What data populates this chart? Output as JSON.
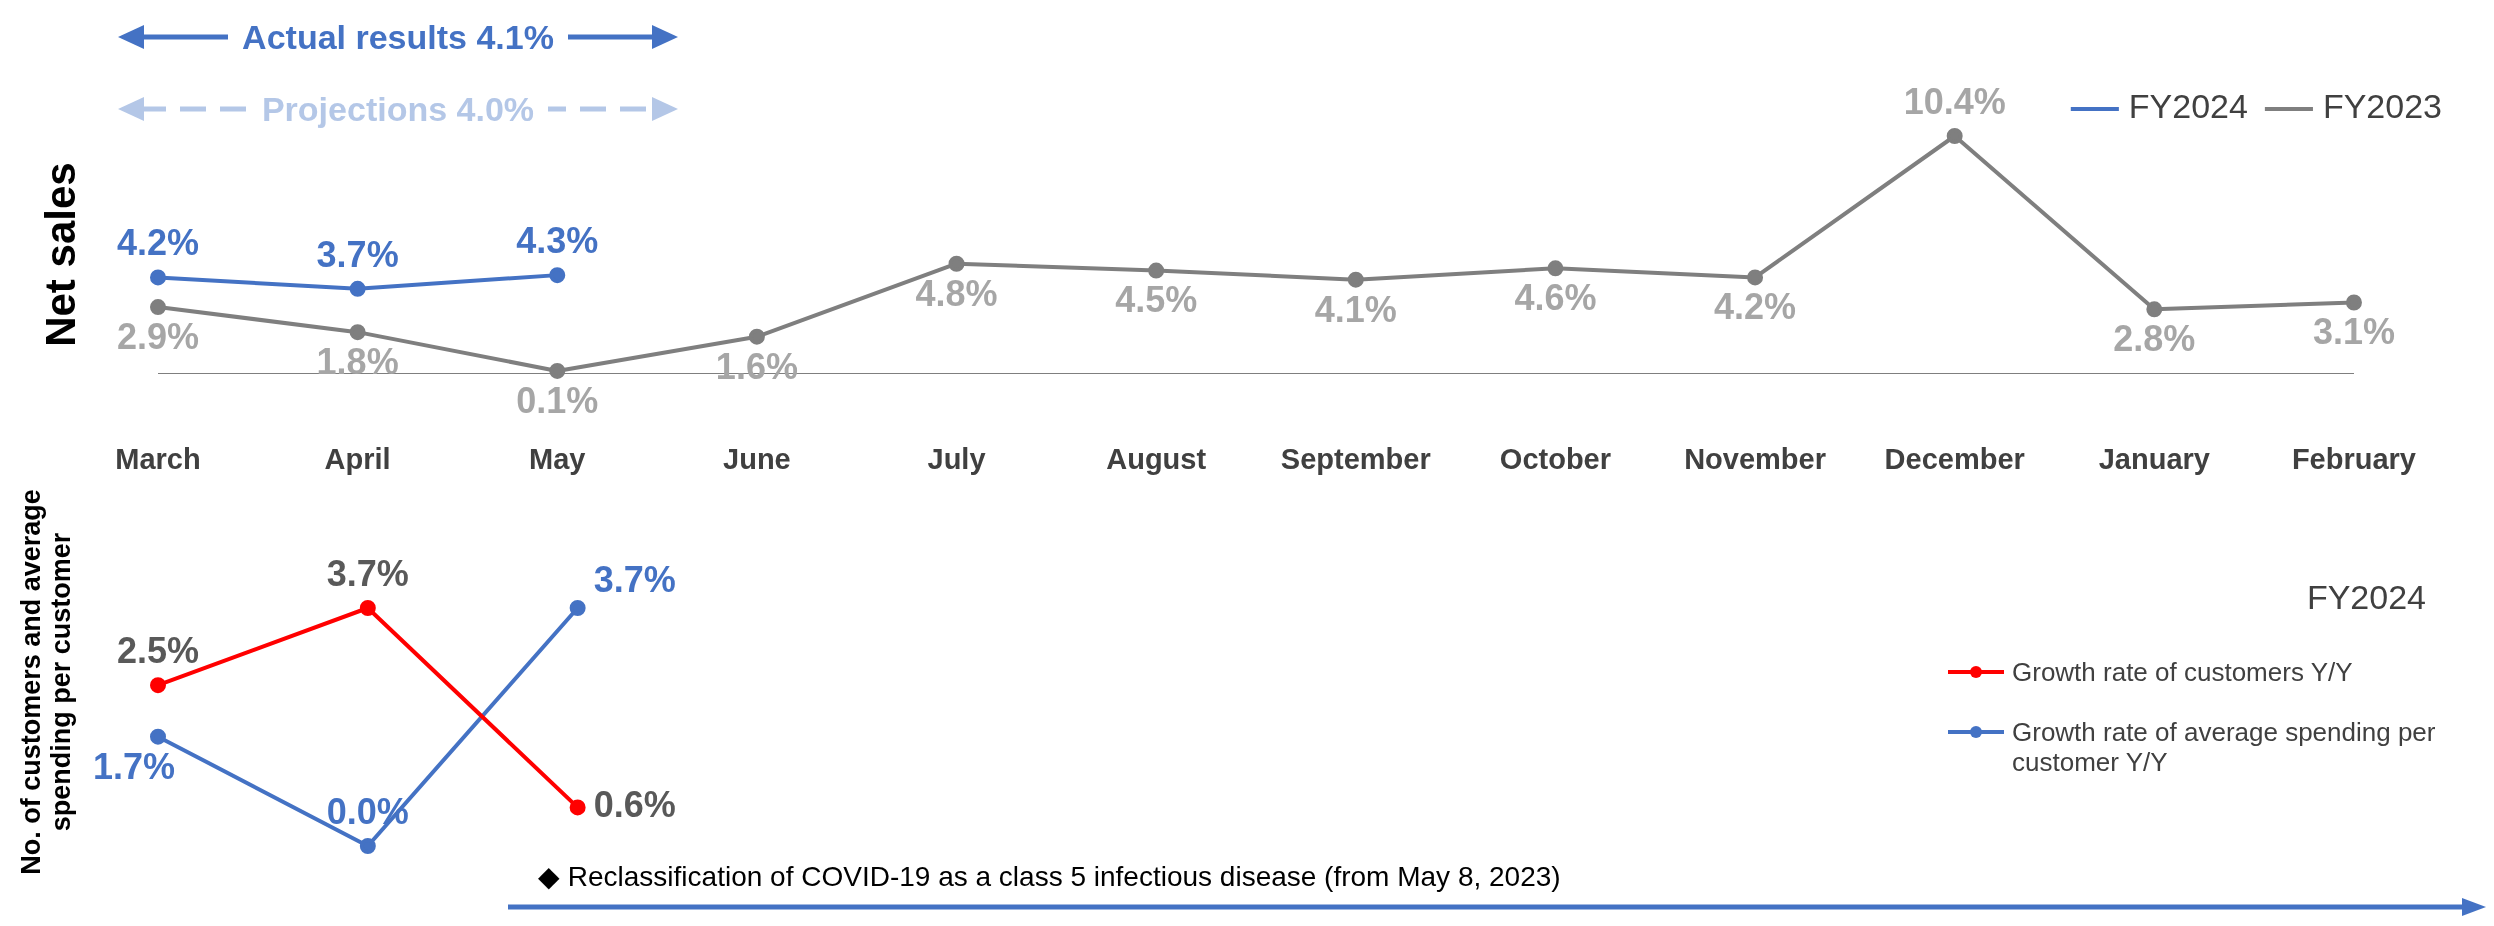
{
  "chart_data": [
    {
      "type": "line",
      "ylabel": "Net sales",
      "categories": [
        "March",
        "April",
        "May",
        "June",
        "July",
        "August",
        "September",
        "October",
        "November",
        "December",
        "January",
        "February"
      ],
      "series": [
        {
          "name": "FY2024",
          "color": "#4472c4",
          "values": [
            4.2,
            3.7,
            4.3,
            null,
            null,
            null,
            null,
            null,
            null,
            null,
            null,
            null
          ],
          "value_labels": [
            "4.2%",
            "3.7%",
            "4.3%",
            null,
            null,
            null,
            null,
            null,
            null,
            null,
            null,
            null
          ]
        },
        {
          "name": "FY2023",
          "color": "#7f7f7f",
          "values": [
            2.9,
            1.8,
            0.1,
            1.6,
            4.8,
            4.5,
            4.1,
            4.6,
            4.2,
            10.4,
            2.8,
            3.1
          ],
          "value_labels": [
            "2.9%",
            "1.8%",
            "0.1%",
            "1.6%",
            "4.8%",
            "4.5%",
            "4.1%",
            "4.6%",
            "4.2%",
            "10.4%",
            "2.8%",
            "3.1%"
          ]
        }
      ],
      "legend": "top right",
      "marker": "circle",
      "grid": false,
      "annotations": [
        "Actual results 4.1%",
        "Projections 4.0%"
      ]
    },
    {
      "type": "line",
      "ylabel": "No. of customers and average spending per customer",
      "legend_title": "FY2024",
      "categories": [
        null,
        null,
        null,
        null,
        null,
        null,
        null,
        null,
        null,
        null,
        null,
        null
      ],
      "series": [
        {
          "name": "Growth rate of customers Y/Y",
          "color": "#ff0000",
          "values": [
            2.5,
            3.7,
            0.6,
            null,
            null,
            null,
            null,
            null,
            null,
            null,
            null,
            null
          ],
          "value_labels": [
            "2.5%",
            "3.7%",
            "0.6%",
            null,
            null,
            null,
            null,
            null,
            null,
            null,
            null,
            null
          ]
        },
        {
          "name": "Growth rate of average spending per customer Y/Y",
          "color": "#4472c4",
          "values": [
            1.7,
            0.0,
            3.7,
            null,
            null,
            null,
            null,
            null,
            null,
            null,
            null,
            null
          ],
          "value_labels": [
            "1.7%",
            "0.0%",
            "3.7%",
            null,
            null,
            null,
            null,
            null,
            null,
            null,
            null,
            null
          ]
        }
      ],
      "legend": "right",
      "marker": "circle",
      "grid": false,
      "tick_labels": false,
      "annotations": [
        "◆ Reclassification of COVID-19 as a class 5 infectious disease (from May 8, 2023)"
      ]
    }
  ]
}
